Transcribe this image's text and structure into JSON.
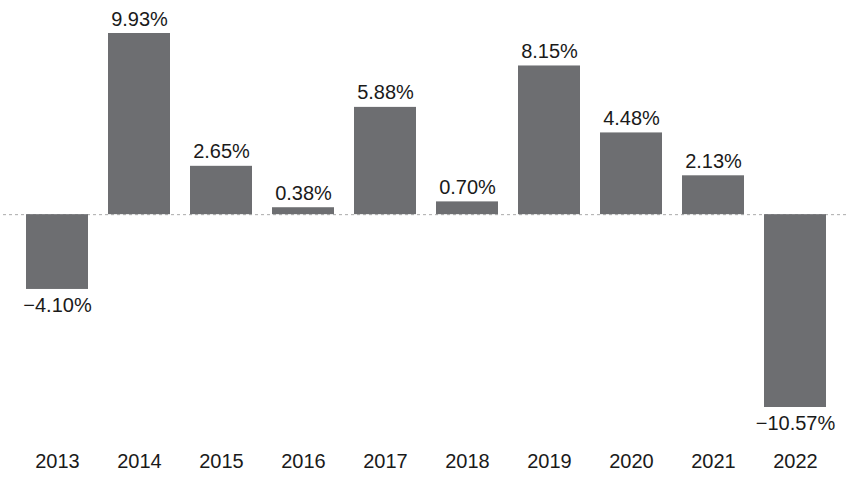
{
  "chart_data": {
    "type": "bar",
    "categories": [
      "2013",
      "2014",
      "2015",
      "2016",
      "2017",
      "2018",
      "2019",
      "2020",
      "2021",
      "2022"
    ],
    "values": [
      -4.1,
      9.93,
      2.65,
      0.38,
      5.88,
      0.7,
      8.15,
      4.48,
      2.13,
      -10.57
    ],
    "value_labels": [
      "−4.10%",
      "9.93%",
      "2.65%",
      "0.38%",
      "5.88%",
      "0.70%",
      "8.15%",
      "4.48%",
      "2.13%",
      "−10.57%"
    ],
    "data_labels": true,
    "color": "#6d6e71",
    "ylim": [
      -10.57,
      9.93
    ],
    "yticks": [],
    "tick_labels": "x",
    "grid": false
  }
}
